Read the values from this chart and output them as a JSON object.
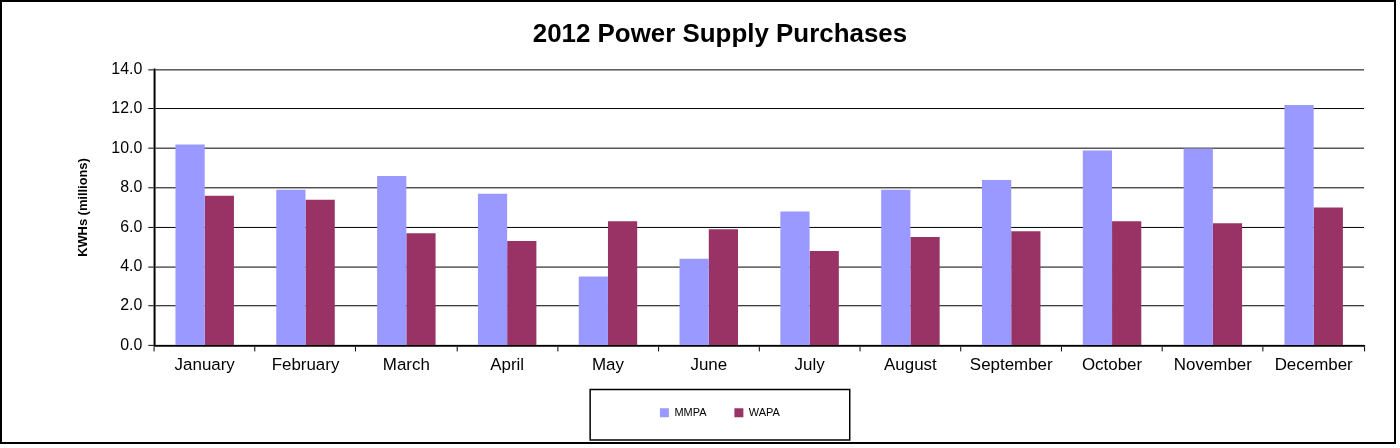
{
  "chart_data": {
    "type": "bar",
    "title": "2012 Power Supply Purchases",
    "ylabel": "KWHs (millions)",
    "categories": [
      "January",
      "February",
      "March",
      "April",
      "May",
      "June",
      "July",
      "August",
      "September",
      "October",
      "November",
      "December"
    ],
    "series": [
      {
        "name": "MMPA",
        "color": "#9999ff",
        "values": [
          10.2,
          7.9,
          8.6,
          7.7,
          3.5,
          4.4,
          6.8,
          7.9,
          8.4,
          9.9,
          10.0,
          12.2
        ]
      },
      {
        "name": "WAPA",
        "color": "#993366",
        "values": [
          7.6,
          7.4,
          5.7,
          5.3,
          6.3,
          5.9,
          4.8,
          5.5,
          5.8,
          6.3,
          6.2,
          7.0
        ]
      }
    ],
    "ylim": [
      0,
      14
    ],
    "yticks": [
      {
        "value": 0,
        "label": "0.0"
      },
      {
        "value": 2,
        "label": "2.0"
      },
      {
        "value": 4,
        "label": "4.0"
      },
      {
        "value": 6,
        "label": "6.0"
      },
      {
        "value": 8,
        "label": "8.0"
      },
      {
        "value": 10,
        "label": "10.0"
      },
      {
        "value": 12,
        "label": "12.0"
      },
      {
        "value": 14,
        "label": "14.0"
      }
    ],
    "grid": "y",
    "legend": "bottom"
  }
}
